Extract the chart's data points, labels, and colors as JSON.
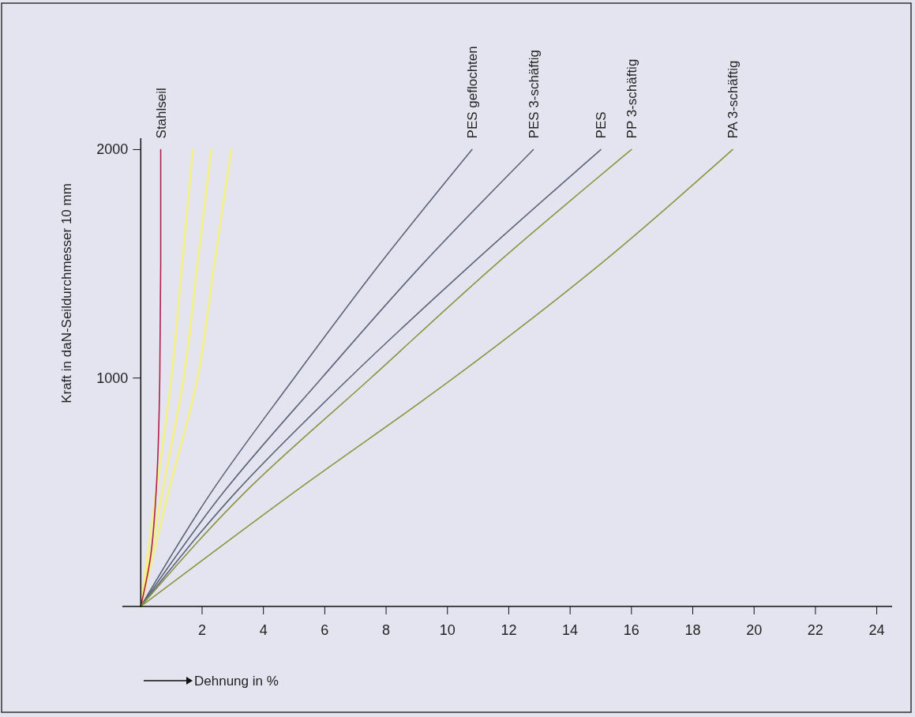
{
  "chart_data": {
    "type": "line",
    "xlabel": "Dehnung in %",
    "ylabel": "Kraft in daN-Seildurchmesser 10 mm",
    "xlim": [
      -0.6,
      24.5
    ],
    "ylim": [
      0,
      2050
    ],
    "xticks": [
      2,
      4,
      6,
      8,
      10,
      12,
      14,
      16,
      18,
      20,
      22,
      24
    ],
    "yticks": [
      1000,
      2000
    ],
    "series": [
      {
        "color": "#f2ef8c",
        "x": [
          0,
          0.5,
          1.0,
          1.35,
          1.7
        ],
        "values": [
          0,
          500,
          1000,
          1500,
          2000
        ]
      },
      {
        "color": "#f2ef8c",
        "x": [
          0,
          0.7,
          1.4,
          1.85,
          2.3
        ],
        "values": [
          0,
          500,
          1000,
          1500,
          2000
        ]
      },
      {
        "color": "#f2ef8c",
        "x": [
          0,
          0.9,
          1.85,
          2.4,
          2.95
        ],
        "values": [
          0,
          500,
          1000,
          1500,
          2000
        ]
      },
      {
        "name": "Stahlseil",
        "color": "#b0204a",
        "x": [
          0,
          0.3,
          0.5,
          0.62,
          0.65,
          0.65
        ],
        "values": [
          0,
          200,
          500,
          1000,
          1500,
          2000
        ]
      },
      {
        "name": "PES geflochten",
        "color": "#5c6479",
        "x": [
          0,
          2.3,
          5.0,
          7.8,
          10.8
        ],
        "values": [
          0,
          500,
          1000,
          1500,
          2000
        ]
      },
      {
        "name": "PES 3-schäftig",
        "color": "#5c6479",
        "x": [
          0,
          2.7,
          5.9,
          9.2,
          12.8
        ],
        "values": [
          0,
          500,
          1000,
          1500,
          2000
        ]
      },
      {
        "name": "PES",
        "color": "#5c6479",
        "x": [
          0,
          3.1,
          6.8,
          10.8,
          15.0
        ],
        "values": [
          0,
          500,
          1000,
          1500,
          2000
        ]
      },
      {
        "name": "PP 3-schäftig",
        "color": "#8c9440",
        "x": [
          0,
          3.4,
          7.5,
          11.6,
          16.0
        ],
        "values": [
          0,
          500,
          1000,
          1500,
          2000
        ]
      },
      {
        "name": "PA 3-schäftig",
        "color": "#8c9440",
        "x": [
          0,
          5.0,
          10.2,
          15.0,
          19.3
        ],
        "values": [
          0,
          500,
          1000,
          1500,
          2000
        ]
      }
    ]
  }
}
